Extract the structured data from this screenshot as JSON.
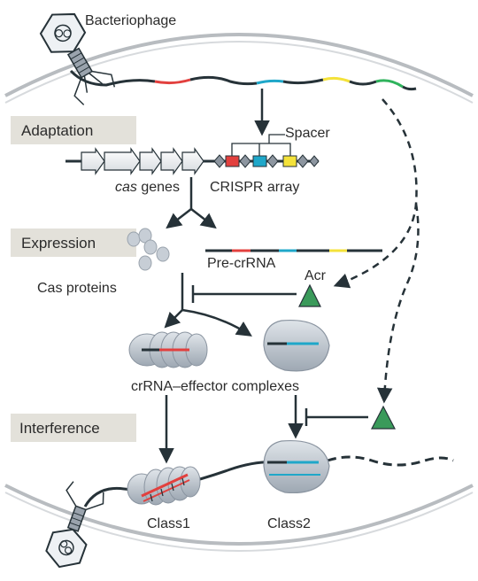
{
  "labels": {
    "bacteriophage": "Bacteriophage",
    "adaptation": "Adaptation",
    "spacer": "Spacer",
    "cas_italic": "cas",
    "cas_genes_suffix": " genes",
    "crispr_array": "CRISPR array",
    "expression": "Expression",
    "pre_crrna": "Pre-crRNA",
    "cas_proteins": "Cas proteins",
    "acr": "Acr",
    "crrna_complexes": "crRNA–effector complexes",
    "interference": "Interference",
    "class1": "Class1",
    "class2": "Class2"
  },
  "colors": {
    "dna": "#263238",
    "red": "#e2403e",
    "blue": "#1fa7c9",
    "yellow": "#f4e23a",
    "green": "#2fb35c",
    "acr": "#3a9a5a",
    "protein": "#c7ced6",
    "cell_wall": "#b8bcc0",
    "label_box": "#e3e1da"
  }
}
